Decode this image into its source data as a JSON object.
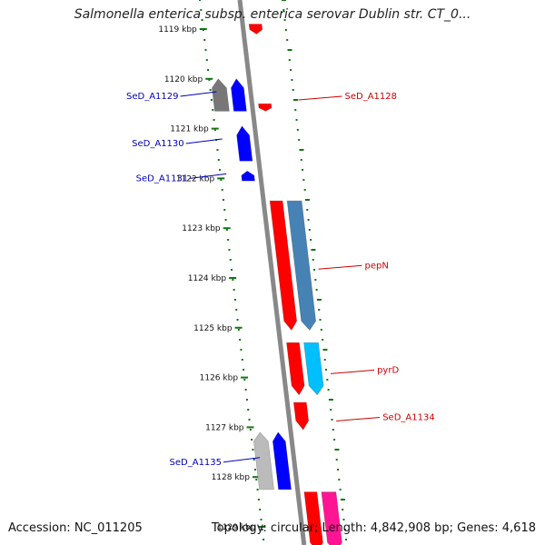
{
  "title": "Salmonella enterica subsp. enterica serovar Dublin str. CT_0...",
  "footer": {
    "accession": "Accession: NC_011205",
    "summary": "Topology: circular; Length: 4,842,908 bp; Genes: 4,618"
  },
  "colors": {
    "backbone": "#888888",
    "tick": "#117711",
    "forward_label": "#cc0000",
    "reverse_label": "#0000bb",
    "red": "#ff0000",
    "steelblue": "#4682b4",
    "cyan": "#00bfff",
    "blue": "#0000ff",
    "gray": "#777777",
    "lightgray": "#bbbbbb",
    "pink": "#ff1493"
  },
  "ticks": [
    "1119 kbp",
    "1120 kbp",
    "1121 kbp",
    "1122 kbp",
    "1123 kbp",
    "1124 kbp",
    "1125 kbp",
    "1126 kbp",
    "1127 kbp",
    "1128 kbp",
    "1129 kbp"
  ],
  "genes": [
    {
      "kbp_start": 1118.9,
      "kbp_end": 1119.1,
      "strand": "+",
      "track": "cds",
      "color": "red"
    },
    {
      "kbp_start": 1120.0,
      "kbp_end": 1120.65,
      "strand": "-",
      "track": "gene",
      "color": "gray"
    },
    {
      "kbp_start": 1120.0,
      "kbp_end": 1120.65,
      "strand": "-",
      "track": "cds",
      "color": "blue"
    },
    {
      "kbp_start": 1120.5,
      "kbp_end": 1120.65,
      "strand": "+",
      "track": "cds",
      "color": "red"
    },
    {
      "kbp_start": 1120.95,
      "kbp_end": 1121.65,
      "strand": "-",
      "track": "cds",
      "color": "blue"
    },
    {
      "kbp_start": 1121.85,
      "kbp_end": 1122.05,
      "strand": "-",
      "track": "cds",
      "color": "blue"
    },
    {
      "kbp_start": 1122.45,
      "kbp_end": 1125.05,
      "strand": "+",
      "track": "cds",
      "color": "red"
    },
    {
      "kbp_start": 1122.45,
      "kbp_end": 1125.05,
      "strand": "+",
      "track": "gene",
      "color": "steelblue"
    },
    {
      "kbp_start": 1125.3,
      "kbp_end": 1126.35,
      "strand": "+",
      "track": "cds",
      "color": "red"
    },
    {
      "kbp_start": 1125.3,
      "kbp_end": 1126.35,
      "strand": "+",
      "track": "gene",
      "color": "cyan"
    },
    {
      "kbp_start": 1126.5,
      "kbp_end": 1127.05,
      "strand": "+",
      "track": "cds",
      "color": "red"
    },
    {
      "kbp_start": 1127.1,
      "kbp_end": 1128.25,
      "strand": "-",
      "track": "gene",
      "color": "lightgray"
    },
    {
      "kbp_start": 1127.1,
      "kbp_end": 1128.25,
      "strand": "-",
      "track": "cds",
      "color": "blue"
    },
    {
      "kbp_start": 1128.3,
      "kbp_end": 1129.5,
      "strand": "+",
      "track": "cds",
      "color": "red"
    },
    {
      "kbp_start": 1128.3,
      "kbp_end": 1129.5,
      "strand": "+",
      "track": "gene",
      "color": "pink"
    }
  ],
  "labels": [
    {
      "text": "SeD_A1128",
      "side": "forward",
      "kbp": 1120.35
    },
    {
      "text": "SeD_A1129",
      "side": "reverse",
      "kbp": 1120.35
    },
    {
      "text": "SeD_A1130",
      "side": "reverse",
      "kbp": 1121.3
    },
    {
      "text": "SeD_A1131",
      "side": "reverse",
      "kbp": 1122.0
    },
    {
      "text": "pepN",
      "side": "forward",
      "kbp": 1123.75
    },
    {
      "text": "pyrD",
      "side": "forward",
      "kbp": 1125.85
    },
    {
      "text": "SeD_A1134",
      "side": "forward",
      "kbp": 1126.8
    },
    {
      "text": "SeD_A1135",
      "side": "reverse",
      "kbp": 1127.7
    }
  ]
}
